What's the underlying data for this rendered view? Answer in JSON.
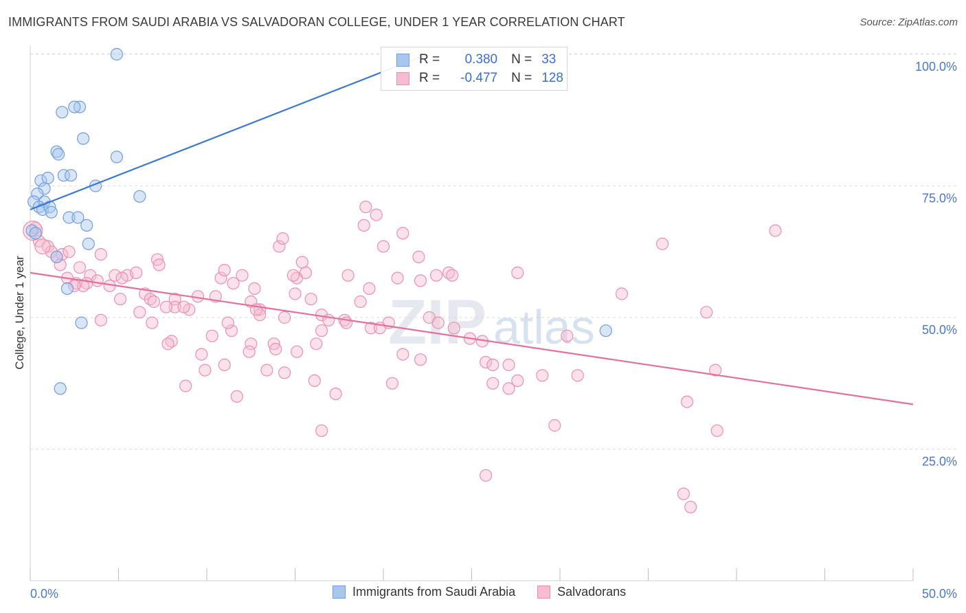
{
  "title": "IMMIGRANTS FROM SAUDI ARABIA VS SALVADORAN COLLEGE, UNDER 1 YEAR CORRELATION CHART",
  "source": "Source: ZipAtlas.com",
  "watermark": {
    "zip": "ZIP",
    "atlas": "atlas"
  },
  "legend": {
    "r_label": "R =",
    "n_label": "N =",
    "series": [
      {
        "name": "Immigrants from Saudi Arabia",
        "r": "0.380",
        "n": "33",
        "fill": "#a9c6ee",
        "stroke": "#6e9edf"
      },
      {
        "name": "Salvadorans",
        "r": "-0.477",
        "n": "128",
        "fill": "#f7bcd0",
        "stroke": "#ec8fb0"
      }
    ]
  },
  "chart_data": {
    "type": "scatter",
    "title": "IMMIGRANTS FROM SAUDI ARABIA VS SALVADORAN COLLEGE, UNDER 1 YEAR CORRELATION CHART",
    "xlabel": "",
    "ylabel": "College, Under 1 year",
    "xlim": [
      0,
      50
    ],
    "ylim": [
      0,
      102
    ],
    "x_tick_labels": [
      "0.0%",
      "50.0%"
    ],
    "y_ticks": [
      25,
      50,
      75,
      100
    ],
    "y_tick_labels": [
      "25.0%",
      "50.0%",
      "75.0%",
      "100.0%"
    ],
    "grid": true,
    "colors": {
      "blue": "#3a78d4",
      "pink": "#e4709a",
      "blue_fill": "#a9c6ee",
      "pink_fill": "#f7bcd0"
    },
    "series": [
      {
        "name": "Immigrants from Saudi Arabia",
        "trend": {
          "x": [
            0.0,
            22.5
          ],
          "y": [
            70.5,
            100.0
          ]
        },
        "points": [
          [
            4.9,
            100.0
          ],
          [
            2.8,
            90.0
          ],
          [
            2.5,
            90.0
          ],
          [
            1.8,
            89.0
          ],
          [
            3.0,
            84.0
          ],
          [
            1.5,
            81.5
          ],
          [
            1.6,
            81.0
          ],
          [
            4.9,
            80.5
          ],
          [
            1.9,
            77.0
          ],
          [
            2.3,
            77.0
          ],
          [
            0.6,
            76.0
          ],
          [
            1.0,
            76.5
          ],
          [
            3.7,
            75.0
          ],
          [
            0.8,
            74.5
          ],
          [
            0.4,
            73.5
          ],
          [
            6.2,
            73.0
          ],
          [
            0.2,
            72.0
          ],
          [
            0.8,
            72.0
          ],
          [
            0.5,
            71.0
          ],
          [
            0.7,
            70.5
          ],
          [
            1.1,
            71.0
          ],
          [
            1.2,
            70.0
          ],
          [
            2.2,
            69.0
          ],
          [
            2.7,
            69.0
          ],
          [
            3.2,
            67.5
          ],
          [
            0.1,
            66.5
          ],
          [
            0.3,
            66.0
          ],
          [
            3.3,
            64.0
          ],
          [
            1.5,
            61.5
          ],
          [
            2.1,
            55.5
          ],
          [
            2.9,
            49.0
          ],
          [
            1.7,
            36.5
          ],
          [
            32.6,
            47.5
          ]
        ]
      },
      {
        "name": "Salvadorans",
        "trend": {
          "x": [
            0.0,
            50.0
          ],
          "y": [
            58.5,
            33.5
          ]
        },
        "points": [
          [
            0.3,
            67.0
          ],
          [
            0.5,
            64.5
          ],
          [
            1.0,
            63.5
          ],
          [
            1.2,
            62.5
          ],
          [
            1.8,
            62.0
          ],
          [
            2.2,
            62.5
          ],
          [
            1.5,
            61.5
          ],
          [
            4.0,
            62.0
          ],
          [
            1.7,
            60.0
          ],
          [
            2.8,
            59.5
          ],
          [
            2.1,
            57.5
          ],
          [
            3.4,
            58.0
          ],
          [
            4.8,
            58.0
          ],
          [
            5.5,
            58.0
          ],
          [
            6.0,
            58.5
          ],
          [
            5.2,
            57.5
          ],
          [
            3.8,
            57.0
          ],
          [
            3.2,
            56.5
          ],
          [
            2.6,
            56.5
          ],
          [
            3.0,
            56.0
          ],
          [
            4.5,
            56.0
          ],
          [
            2.5,
            56.0
          ],
          [
            6.5,
            54.5
          ],
          [
            7.2,
            61.0
          ],
          [
            7.3,
            60.0
          ],
          [
            6.8,
            53.5
          ],
          [
            5.1,
            53.5
          ],
          [
            7.0,
            53.0
          ],
          [
            8.2,
            53.5
          ],
          [
            9.5,
            54.0
          ],
          [
            10.5,
            54.0
          ],
          [
            11.5,
            56.5
          ],
          [
            10.8,
            57.5
          ],
          [
            11.0,
            59.0
          ],
          [
            12.0,
            58.0
          ],
          [
            12.7,
            55.5
          ],
          [
            12.5,
            53.0
          ],
          [
            13.0,
            51.5
          ],
          [
            13.0,
            50.5
          ],
          [
            14.4,
            50.0
          ],
          [
            15.0,
            54.5
          ],
          [
            15.1,
            57.5
          ],
          [
            14.1,
            63.5
          ],
          [
            14.3,
            65.0
          ],
          [
            14.9,
            58.0
          ],
          [
            15.6,
            58.5
          ],
          [
            15.4,
            60.5
          ],
          [
            15.9,
            53.5
          ],
          [
            16.5,
            50.5
          ],
          [
            17.8,
            49.5
          ],
          [
            16.9,
            49.5
          ],
          [
            17.9,
            49.0
          ],
          [
            18.0,
            58.0
          ],
          [
            18.7,
            53.0
          ],
          [
            19.2,
            55.5
          ],
          [
            18.9,
            67.5
          ],
          [
            19.0,
            71.0
          ],
          [
            19.6,
            69.5
          ],
          [
            20.0,
            63.5
          ],
          [
            21.1,
            66.0
          ],
          [
            20.8,
            57.5
          ],
          [
            22.0,
            61.5
          ],
          [
            22.1,
            57.0
          ],
          [
            23.0,
            58.0
          ],
          [
            23.7,
            58.5
          ],
          [
            23.9,
            58.0
          ],
          [
            22.6,
            50.0
          ],
          [
            23.1,
            49.0
          ],
          [
            20.3,
            49.0
          ],
          [
            19.3,
            48.0
          ],
          [
            19.8,
            48.0
          ],
          [
            24.0,
            48.0
          ],
          [
            16.5,
            47.5
          ],
          [
            12.8,
            51.5
          ],
          [
            9.0,
            51.5
          ],
          [
            8.2,
            52.0
          ],
          [
            8.7,
            52.0
          ],
          [
            7.7,
            52.0
          ],
          [
            6.2,
            51.0
          ],
          [
            6.9,
            49.0
          ],
          [
            4.0,
            49.5
          ],
          [
            8.0,
            45.5
          ],
          [
            7.8,
            45.0
          ],
          [
            10.3,
            46.5
          ],
          [
            11.4,
            47.5
          ],
          [
            11.2,
            49.0
          ],
          [
            12.5,
            45.0
          ],
          [
            13.8,
            45.0
          ],
          [
            12.4,
            43.5
          ],
          [
            13.9,
            44.0
          ],
          [
            15.1,
            43.5
          ],
          [
            16.2,
            45.0
          ],
          [
            9.7,
            43.0
          ],
          [
            11.0,
            41.0
          ],
          [
            13.4,
            40.0
          ],
          [
            14.4,
            39.5
          ],
          [
            9.9,
            40.0
          ],
          [
            8.8,
            37.0
          ],
          [
            11.7,
            35.0
          ],
          [
            16.1,
            38.0
          ],
          [
            17.3,
            35.5
          ],
          [
            16.5,
            28.5
          ],
          [
            20.5,
            37.5
          ],
          [
            21.1,
            43.0
          ],
          [
            22.1,
            42.0
          ],
          [
            24.9,
            46.0
          ],
          [
            25.6,
            45.5
          ],
          [
            25.8,
            41.5
          ],
          [
            26.2,
            41.0
          ],
          [
            27.1,
            41.0
          ],
          [
            26.2,
            37.5
          ],
          [
            27.1,
            36.5
          ],
          [
            27.6,
            38.0
          ],
          [
            29.0,
            39.0
          ],
          [
            31.0,
            39.0
          ],
          [
            30.4,
            46.5
          ],
          [
            29.7,
            29.5
          ],
          [
            35.8,
            64.0
          ],
          [
            33.5,
            54.5
          ],
          [
            37.2,
            34.0
          ],
          [
            38.8,
            40.0
          ],
          [
            38.3,
            51.0
          ],
          [
            38.9,
            28.5
          ],
          [
            42.2,
            66.5
          ],
          [
            37.0,
            16.5
          ],
          [
            37.4,
            14.0
          ],
          [
            25.8,
            20.0
          ],
          [
            27.6,
            58.5
          ]
        ]
      }
    ]
  }
}
